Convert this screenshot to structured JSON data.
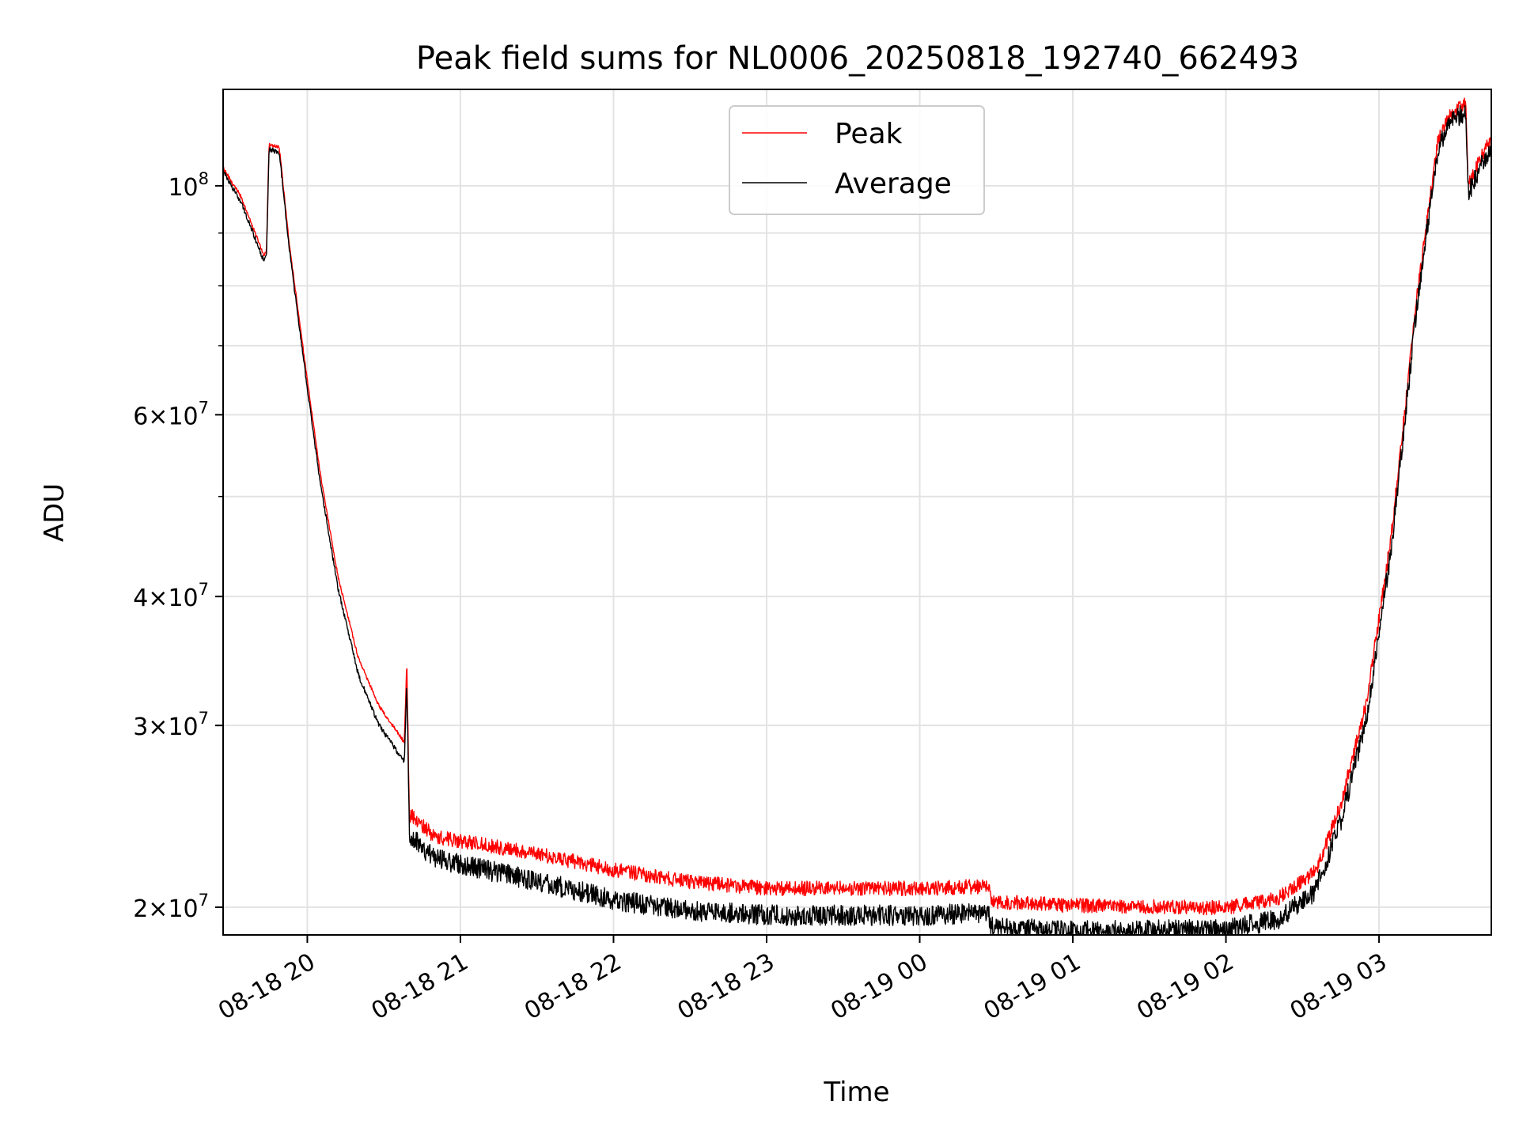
{
  "chart_data": {
    "type": "line",
    "title": "Peak field sums for NL0006_20250818_192740_662493",
    "xlabel": "Time",
    "ylabel": "ADU",
    "y_scale": "log",
    "ylim": [
      18800000,
      124000000
    ],
    "xlim": [
      "2025-08-18 19:27",
      "2025-08-19 03:44"
    ],
    "grid": true,
    "legend_position": "top-center",
    "x_ticks": [
      {
        "t": "2025-08-18 20:00",
        "label": "08-18 20"
      },
      {
        "t": "2025-08-18 21:00",
        "label": "08-18 21"
      },
      {
        "t": "2025-08-18 22:00",
        "label": "08-18 22"
      },
      {
        "t": "2025-08-18 23:00",
        "label": "08-18 23"
      },
      {
        "t": "2025-08-19 00:00",
        "label": "08-19 00"
      },
      {
        "t": "2025-08-19 01:00",
        "label": "08-19 01"
      },
      {
        "t": "2025-08-19 02:00",
        "label": "08-19 02"
      },
      {
        "t": "2025-08-19 03:00",
        "label": "08-19 03"
      }
    ],
    "y_major_ticks": [
      {
        "v": 20000000,
        "mant": "2",
        "exp": "7"
      },
      {
        "v": 30000000,
        "mant": "3",
        "exp": "7"
      },
      {
        "v": 40000000,
        "mant": "4",
        "exp": "7"
      },
      {
        "v": 60000000,
        "mant": "6",
        "exp": "7"
      },
      {
        "v": 100000000,
        "mant": "",
        "exp": "8"
      }
    ],
    "y_minor_ticks": [
      50000000,
      70000000,
      80000000,
      90000000
    ],
    "series": [
      {
        "name": "Peak",
        "color": "#ff0000",
        "noise": 0.032,
        "points": [
          [
            "2025-08-18 19:27",
            104500000
          ],
          [
            "2025-08-18 19:34",
            98000000
          ],
          [
            "2025-08-18 19:43",
            86000000
          ],
          [
            "2025-08-18 19:44",
            87000000
          ],
          [
            "2025-08-18 19:45",
            110000000
          ],
          [
            "2025-08-18 19:49",
            109500000
          ],
          [
            "2025-08-18 19:53",
            88000000
          ],
          [
            "2025-08-18 20:00",
            65000000
          ],
          [
            "2025-08-18 20:05",
            53000000
          ],
          [
            "2025-08-18 20:12",
            42000000
          ],
          [
            "2025-08-18 20:20",
            35000000
          ],
          [
            "2025-08-18 20:28",
            31500000
          ],
          [
            "2025-08-18 20:38",
            29000000
          ],
          [
            "2025-08-18 20:39",
            34800000
          ],
          [
            "2025-08-18 20:40",
            25000000
          ],
          [
            "2025-08-18 20:50",
            23800000
          ],
          [
            "2025-08-18 21:30",
            22900000
          ],
          [
            "2025-08-18 22:00",
            22100000
          ],
          [
            "2025-08-18 22:30",
            21500000
          ],
          [
            "2025-08-18 23:00",
            21200000
          ],
          [
            "2025-08-19 00:00",
            21200000
          ],
          [
            "2025-08-19 00:27",
            21300000
          ],
          [
            "2025-08-19 00:28",
            20600000
          ],
          [
            "2025-08-19 01:00",
            20400000
          ],
          [
            "2025-08-19 02:00",
            20300000
          ],
          [
            "2025-08-19 02:20",
            20700000
          ],
          [
            "2025-08-19 02:35",
            22000000
          ],
          [
            "2025-08-19 02:45",
            25500000
          ],
          [
            "2025-08-19 02:55",
            32000000
          ],
          [
            "2025-08-19 03:05",
            47000000
          ],
          [
            "2025-08-19 03:15",
            80000000
          ],
          [
            "2025-08-19 03:23",
            112000000
          ],
          [
            "2025-08-19 03:28",
            119000000
          ],
          [
            "2025-08-19 03:34",
            122000000
          ],
          [
            "2025-08-19 03:35",
            101500000
          ],
          [
            "2025-08-19 03:40",
            108500000
          ],
          [
            "2025-08-19 03:44",
            112500000
          ]
        ]
      },
      {
        "name": "Average",
        "color": "#000000",
        "noise": 0.045,
        "points": [
          [
            "2025-08-18 19:27",
            104000000
          ],
          [
            "2025-08-18 19:34",
            97000000
          ],
          [
            "2025-08-18 19:43",
            85000000
          ],
          [
            "2025-08-18 19:44",
            86000000
          ],
          [
            "2025-08-18 19:45",
            109000000
          ],
          [
            "2025-08-18 19:49",
            108500000
          ],
          [
            "2025-08-18 19:53",
            87000000
          ],
          [
            "2025-08-18 20:00",
            64000000
          ],
          [
            "2025-08-18 20:05",
            52000000
          ],
          [
            "2025-08-18 20:12",
            41000000
          ],
          [
            "2025-08-18 20:20",
            33800000
          ],
          [
            "2025-08-18 20:28",
            30200000
          ],
          [
            "2025-08-18 20:38",
            27800000
          ],
          [
            "2025-08-18 20:39",
            33500000
          ],
          [
            "2025-08-18 20:40",
            24000000
          ],
          [
            "2025-08-18 20:50",
            22800000
          ],
          [
            "2025-08-18 21:30",
            21700000
          ],
          [
            "2025-08-18 22:00",
            20800000
          ],
          [
            "2025-08-18 22:30",
            20300000
          ],
          [
            "2025-08-18 23:00",
            20100000
          ],
          [
            "2025-08-19 00:00",
            20100000
          ],
          [
            "2025-08-19 00:27",
            20200000
          ],
          [
            "2025-08-19 00:28",
            19600000
          ],
          [
            "2025-08-19 01:00",
            19400000
          ],
          [
            "2025-08-19 02:00",
            19500000
          ],
          [
            "2025-08-19 02:20",
            19900000
          ],
          [
            "2025-08-19 02:35",
            21200000
          ],
          [
            "2025-08-19 02:45",
            24800000
          ],
          [
            "2025-08-19 02:55",
            31000000
          ],
          [
            "2025-08-19 03:05",
            46000000
          ],
          [
            "2025-08-19 03:15",
            79000000
          ],
          [
            "2025-08-19 03:23",
            111000000
          ],
          [
            "2025-08-19 03:28",
            118000000
          ],
          [
            "2025-08-19 03:34",
            121000000
          ],
          [
            "2025-08-19 03:35",
            100500000
          ],
          [
            "2025-08-19 03:40",
            107500000
          ],
          [
            "2025-08-19 03:44",
            111500000
          ]
        ]
      }
    ]
  }
}
